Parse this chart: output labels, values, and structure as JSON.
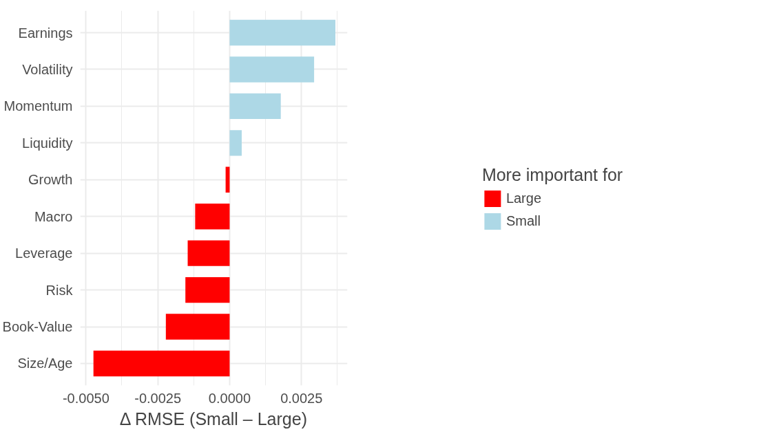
{
  "chart_data": {
    "type": "bar",
    "orientation": "horizontal",
    "xlabel": "Δ RMSE (Small – Large)",
    "legend_title": "More important for",
    "legend": "right",
    "grid": true,
    "categories": [
      "Earnings",
      "Volatility",
      "Momentum",
      "Liquidity",
      "Growth",
      "Macro",
      "Leverage",
      "Risk",
      "Book-Value",
      "Size/Age"
    ],
    "series": [
      {
        "name": "Large",
        "color": "#ff0000",
        "values": [
          null,
          null,
          null,
          null,
          -0.00014,
          -0.0012,
          -0.00146,
          -0.00154,
          -0.00222,
          -0.00474
        ]
      },
      {
        "name": "Small",
        "color": "#add8e6",
        "values": [
          0.00368,
          0.00294,
          0.00178,
          0.00042,
          null,
          null,
          null,
          null,
          null,
          null
        ]
      }
    ],
    "xlim": [
      -0.0052,
      0.0041
    ],
    "xticks": [
      {
        "value": -0.005,
        "label": "-0.0050"
      },
      {
        "value": -0.0025,
        "label": "-0.0025"
      },
      {
        "value": 0,
        "label": "0.0000"
      },
      {
        "value": 0.0025,
        "label": "0.0025"
      }
    ]
  }
}
